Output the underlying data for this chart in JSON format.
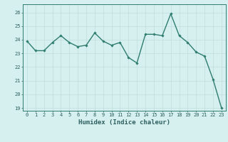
{
  "x": [
    0,
    1,
    2,
    3,
    4,
    5,
    6,
    7,
    8,
    9,
    10,
    11,
    12,
    13,
    14,
    15,
    16,
    17,
    18,
    19,
    20,
    21,
    22,
    23
  ],
  "y": [
    23.9,
    23.2,
    23.2,
    23.8,
    24.3,
    23.8,
    23.5,
    23.6,
    24.5,
    23.9,
    23.6,
    23.8,
    22.7,
    22.3,
    24.4,
    24.4,
    24.3,
    25.9,
    24.3,
    23.8,
    23.1,
    22.8,
    21.1,
    19.0
  ],
  "line_color": "#2e7d6e",
  "marker": "D",
  "marker_size": 1.8,
  "line_width": 1.0,
  "xlabel": "Humidex (Indice chaleur)",
  "xlabel_fontsize": 6.5,
  "bg_color": "#d6f0ef",
  "grid_color": "#c0dedd",
  "axes_bg": "#d6f0ef",
  "ylim": [
    18.8,
    26.6
  ],
  "xlim": [
    -0.5,
    23.5
  ],
  "yticks": [
    19,
    20,
    21,
    22,
    23,
    24,
    25,
    26
  ],
  "xticks": [
    0,
    1,
    2,
    3,
    4,
    5,
    6,
    7,
    8,
    9,
    10,
    11,
    12,
    13,
    14,
    15,
    16,
    17,
    18,
    19,
    20,
    21,
    22,
    23
  ],
  "tick_fontsize": 5.0,
  "tick_color": "#2e6060",
  "spine_color": "#2e7d6e"
}
